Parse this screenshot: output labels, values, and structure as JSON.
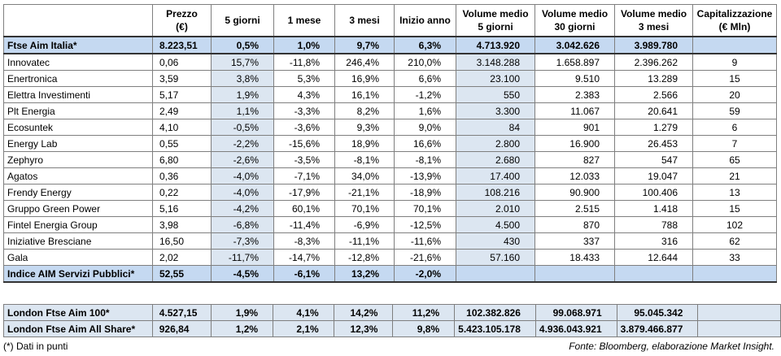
{
  "table": {
    "header": [
      [
        "Prezzo",
        "(€)"
      ],
      [
        "5 giorni"
      ],
      [
        "1 mese"
      ],
      [
        "3 mesi"
      ],
      [
        "Inizio anno"
      ],
      [
        "Volume medio",
        "5 giorni"
      ],
      [
        "Volume medio",
        "30 giorni"
      ],
      [
        "Volume medio",
        "3 mesi"
      ],
      [
        "Capitalizzazione",
        "(€ Mln)"
      ]
    ],
    "index_row": [
      "Ftse Aim Italia*",
      "8.223,51",
      "0,5%",
      "1,0%",
      "9,7%",
      "6,3%",
      "4.713.920",
      "3.042.626",
      "3.989.780"
    ],
    "rows": [
      [
        "Innovatec",
        "0,06",
        "15,7%",
        "-11,8%",
        "246,4%",
        "210,0%",
        "3.148.288",
        "1.658.897",
        "2.396.262",
        "9"
      ],
      [
        "Enertronica",
        "3,59",
        "3,8%",
        "5,3%",
        "16,9%",
        "6,6%",
        "23.100",
        "9.510",
        "13.289",
        "15"
      ],
      [
        "Elettra Investimenti",
        "5,17",
        "1,9%",
        "4,3%",
        "16,1%",
        "-1,2%",
        "550",
        "2.383",
        "2.566",
        "20"
      ],
      [
        "Plt Energia",
        "2,49",
        "1,1%",
        "-3,3%",
        "8,2%",
        "1,6%",
        "3.300",
        "11.067",
        "20.641",
        "59"
      ],
      [
        "Ecosuntek",
        "4,10",
        "-0,5%",
        "-3,6%",
        "9,3%",
        "9,0%",
        "84",
        "901",
        "1.279",
        "6"
      ],
      [
        "Energy Lab",
        "0,55",
        "-2,2%",
        "-15,6%",
        "18,9%",
        "16,6%",
        "2.800",
        "16.900",
        "26.453",
        "7"
      ],
      [
        "Zephyro",
        "6,80",
        "-2,6%",
        "-3,5%",
        "-8,1%",
        "-8,1%",
        "2.680",
        "827",
        "547",
        "65"
      ],
      [
        "Agatos",
        "0,36",
        "-4,0%",
        "-7,1%",
        "34,0%",
        "-13,9%",
        "17.400",
        "12.033",
        "19.047",
        "21"
      ],
      [
        "Frendy Energy",
        "0,22",
        "-4,0%",
        "-17,9%",
        "-21,1%",
        "-18,9%",
        "108.216",
        "90.900",
        "100.406",
        "13"
      ],
      [
        "Gruppo Green Power",
        "5,16",
        "-4,2%",
        "60,1%",
        "70,1%",
        "70,1%",
        "2.010",
        "2.515",
        "1.418",
        "15"
      ],
      [
        "Fintel Energia Group",
        "3,98",
        "-6,8%",
        "-11,4%",
        "-6,9%",
        "-12,5%",
        "4.500",
        "870",
        "788",
        "102"
      ],
      [
        "Iniziative Bresciane",
        "16,50",
        "-7,3%",
        "-8,3%",
        "-11,1%",
        "-11,6%",
        "430",
        "337",
        "316",
        "62"
      ],
      [
        "Gala",
        "2,02",
        "-11,7%",
        "-14,7%",
        "-12,8%",
        "-21,6%",
        "57.160",
        "18.433",
        "12.644",
        "33"
      ]
    ],
    "summary_row": [
      "Indice AIM Servizi Pubblici*",
      "52,55",
      "-4,5%",
      "-6,1%",
      "13,2%",
      "-2,0%"
    ],
    "london_rows": [
      [
        "London Ftse Aim 100*",
        "4.527,15",
        "1,9%",
        "4,1%",
        "14,2%",
        "11,2%",
        "102.382.826",
        "99.068.971",
        "95.045.342"
      ],
      [
        "London Ftse Aim All Share*",
        "926,84",
        "1,2%",
        "2,1%",
        "12,3%",
        "9,8%",
        "5.423.105.178",
        "4.936.043.921",
        "3.879.466.877"
      ]
    ],
    "note": "(*) Dati in punti",
    "source": "Fonte: Bloomberg, elaborazione Market Insight."
  }
}
